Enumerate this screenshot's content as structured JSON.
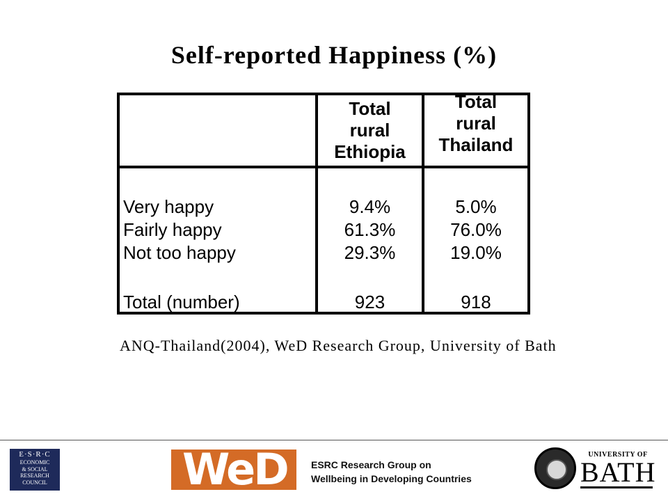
{
  "title": "Self-reported Happiness (%)",
  "table": {
    "columns": [
      {
        "lines": [
          "Total",
          "rural",
          "Ethiopia"
        ]
      },
      {
        "lines": [
          "Total",
          "rural",
          "Thailand"
        ]
      }
    ],
    "rows": [
      {
        "label": "Very happy",
        "ethiopia": "9.4%",
        "thailand": "5.0%"
      },
      {
        "label": "Fairly happy",
        "ethiopia": "61.3%",
        "thailand": "76.0%"
      },
      {
        "label": "Not too happy",
        "ethiopia": "29.3%",
        "thailand": "19.0%"
      },
      {
        "label": "Total (number)",
        "ethiopia": "923",
        "thailand": "918"
      }
    ]
  },
  "source": "ANQ-Thailand(2004), WeD Research Group, University of Bath",
  "footer": {
    "esrc_logo": {
      "line1": "E·S·R·C",
      "lines": [
        "ECONOMIC",
        "& SOCIAL",
        "RESEARCH",
        "COUNCIL"
      ]
    },
    "wed_logo": "WeD",
    "group_text": [
      "ESRC Research Group on",
      "Wellbeing in Developing Countries"
    ],
    "bath_logo": {
      "top": "UNIVERSITY OF",
      "name": "BATH"
    }
  }
}
